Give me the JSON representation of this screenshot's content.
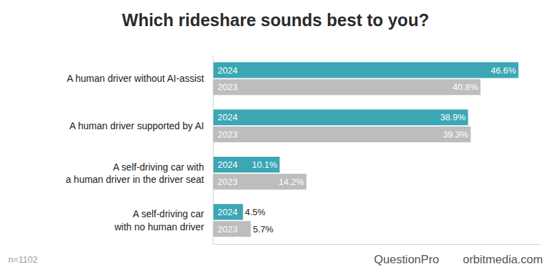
{
  "chart_data": {
    "type": "bar",
    "title": "Which rideshare sounds best to you?",
    "orientation": "horizontal",
    "categories": [
      "A human driver without AI-assist",
      "A human driver supported by AI",
      "A self-driving car with\na human driver in the driver seat",
      "A self-driving car\nwith no human driver"
    ],
    "series": [
      {
        "name": "2024",
        "color": "#3ba7b5",
        "values": [
          46.6,
          38.9,
          10.1,
          4.5
        ],
        "value_labels": [
          "46.6%",
          "38.9%",
          "10.1%",
          "4.5%"
        ]
      },
      {
        "name": "2023",
        "color": "#bdbdbd",
        "values": [
          40.8,
          39.3,
          14.2,
          5.7
        ],
        "value_labels": [
          "40.8%",
          "39.3%",
          "14.2%",
          "5.7%"
        ]
      }
    ],
    "data_labels": true,
    "tick_labels": "y",
    "grid": false,
    "xlim": [
      0,
      50
    ],
    "annotations": [
      "n=1102",
      "QuestionPro",
      "orbitmedia.com"
    ]
  }
}
